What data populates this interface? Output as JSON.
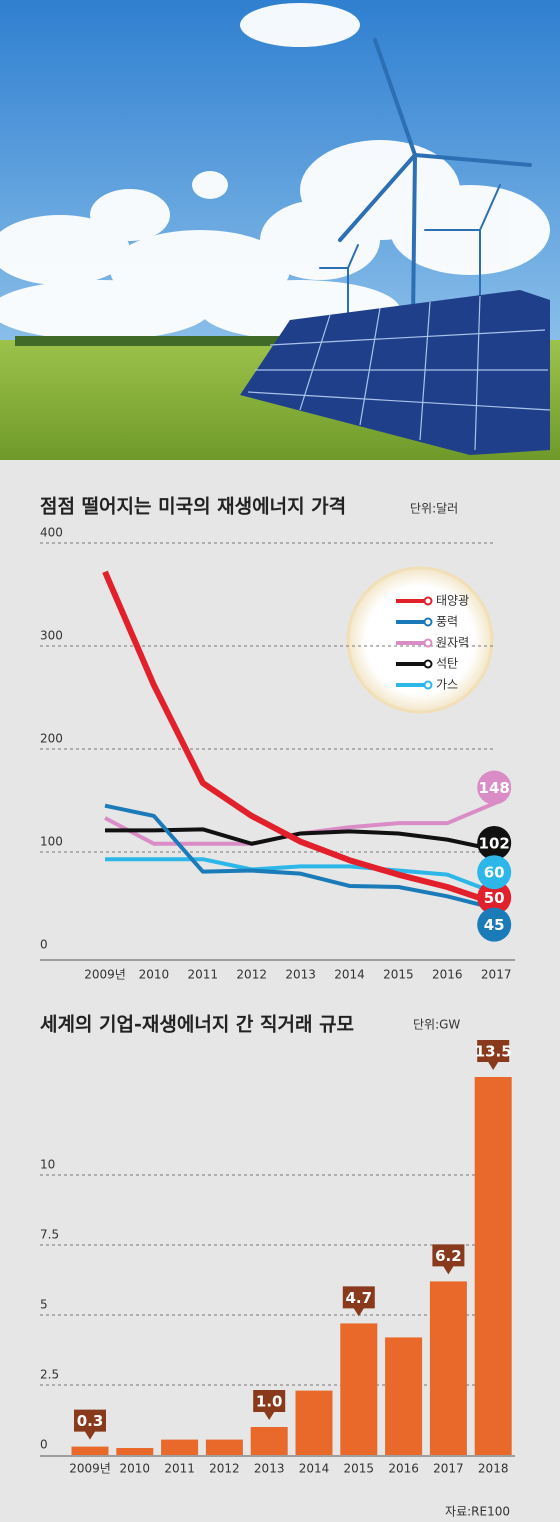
{
  "chart_data": [
    {
      "type": "line",
      "title": "점점 떨어지는 미국의 재생에너지 가격",
      "unit": "단위:달러",
      "categories": [
        "2009년",
        "2010",
        "2011",
        "2012",
        "2013",
        "2014",
        "2015",
        "2016",
        "2017"
      ],
      "series": [
        {
          "name": "태양광",
          "color": "#e2202c",
          "values": [
            372,
            262,
            167,
            135,
            110,
            92,
            78,
            66,
            50
          ]
        },
        {
          "name": "풍력",
          "color": "#1b7ab8",
          "values": [
            145,
            135,
            81,
            82,
            79,
            67,
            66,
            57,
            45
          ]
        },
        {
          "name": "원자력",
          "color": "#d98cc6",
          "values": [
            133,
            108,
            108,
            108,
            118,
            124,
            128,
            128,
            148
          ]
        },
        {
          "name": "석탄",
          "color": "#111111",
          "values": [
            121,
            121,
            122,
            108,
            118,
            120,
            118,
            112,
            102
          ]
        },
        {
          "name": "가스",
          "color": "#2cb7e8",
          "values": [
            93,
            93,
            93,
            83,
            86,
            86,
            82,
            78,
            60
          ]
        }
      ],
      "ylim": [
        0,
        400
      ],
      "yticks": [
        0,
        100,
        200,
        300,
        400
      ],
      "grid": true
    },
    {
      "type": "bar",
      "title": "세계의 기업-재생에너지 간 직거래 규모",
      "unit": "단위:GW",
      "source": "자료:RE100",
      "categories": [
        "2009년",
        "2010",
        "2011",
        "2012",
        "2013",
        "2014",
        "2015",
        "2016",
        "2017",
        "2018"
      ],
      "values": [
        0.3,
        0.25,
        0.55,
        0.55,
        1.0,
        2.3,
        4.7,
        4.2,
        6.2,
        13.5
      ],
      "value_labels": [
        "0.3",
        null,
        null,
        null,
        "1.0",
        null,
        "4.7",
        null,
        "6.2",
        "13.5"
      ],
      "color": "#e8692a",
      "ylim": [
        0,
        14
      ],
      "yticks": [
        0,
        2.5,
        5,
        7.5,
        10
      ],
      "grid": true
    }
  ]
}
